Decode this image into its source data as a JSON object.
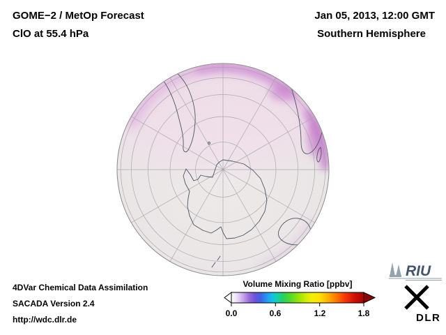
{
  "header": {
    "product_line": "GOME−2 / MetOp Forecast",
    "species_line": "ClO at 55.4 hPa",
    "datetime_line": "Jan 05, 2013, 12:00 GMT",
    "hemisphere_line": "Southern Hemisphere"
  },
  "globe": {
    "base_color": "#ebe6e7",
    "pink_wash_color": "#f3d8ea",
    "band_color": "#dcaede",
    "band_bright_color": "#cf8ed3",
    "band_right_color": "#c87fcd",
    "graticule_color": "#a0a0a8",
    "coast_color": "#4a5660",
    "limb_color": "#8a8a8a"
  },
  "colorbar": {
    "title": "Volume Mixing Ratio [ppbv]",
    "tick_labels": [
      "0.0",
      "0.6",
      "1.2",
      "1.8"
    ],
    "range": [
      0,
      1.8
    ],
    "left_arrow_color": "#ffffff",
    "right_arrow_color": "#8f0000",
    "gradient_stops": [
      [
        0.0,
        "#ffffff"
      ],
      [
        0.08,
        "#eadcf6"
      ],
      [
        0.16,
        "#c7a4ea"
      ],
      [
        0.24,
        "#9a6cdc"
      ],
      [
        0.32,
        "#6e52da"
      ],
      [
        0.4,
        "#3f63e8"
      ],
      [
        0.48,
        "#2496f0"
      ],
      [
        0.56,
        "#10c2e6"
      ],
      [
        0.62,
        "#12d2b2"
      ],
      [
        0.7,
        "#24d060"
      ],
      [
        0.8,
        "#52d928"
      ],
      [
        0.9,
        "#8ee20a"
      ],
      [
        1.0,
        "#c9ec00"
      ],
      [
        1.1,
        "#f4f000"
      ],
      [
        1.2,
        "#ffe000"
      ],
      [
        1.32,
        "#ffae00"
      ],
      [
        1.44,
        "#ff7000"
      ],
      [
        1.56,
        "#f53008"
      ],
      [
        1.68,
        "#d01008"
      ],
      [
        1.8,
        "#a80000"
      ]
    ]
  },
  "footer": {
    "line1": "4DVar Chemical Data Assimilation",
    "line2": "SACADA Version 2.4",
    "line3": "http://wdc.dlr.de"
  },
  "logos": {
    "riu_text": "RIU",
    "dlr_text": "DLR"
  },
  "chart_data": {
    "type": "heatmap",
    "title": "ClO volume mixing ratio at 55.4 hPa, Southern Hemisphere, orthographic south-polar projection",
    "colorbar_label": "Volume Mixing Ratio [ppbv]",
    "value_range_ppbv": [
      0.0,
      1.8
    ],
    "tick_values": [
      0.0,
      0.6,
      1.2,
      1.8
    ],
    "field_description": "Most of the hemisphere near 0.0–0.15 ppbv (white to pale pink); enhanced ~0.2–0.4 ppbv (violet/magenta) band along the northern limb of the disk, strongest in the upper-right (Africa/Indian Ocean) sector; Antarctica region near 0.0–0.1 ppbv."
  }
}
